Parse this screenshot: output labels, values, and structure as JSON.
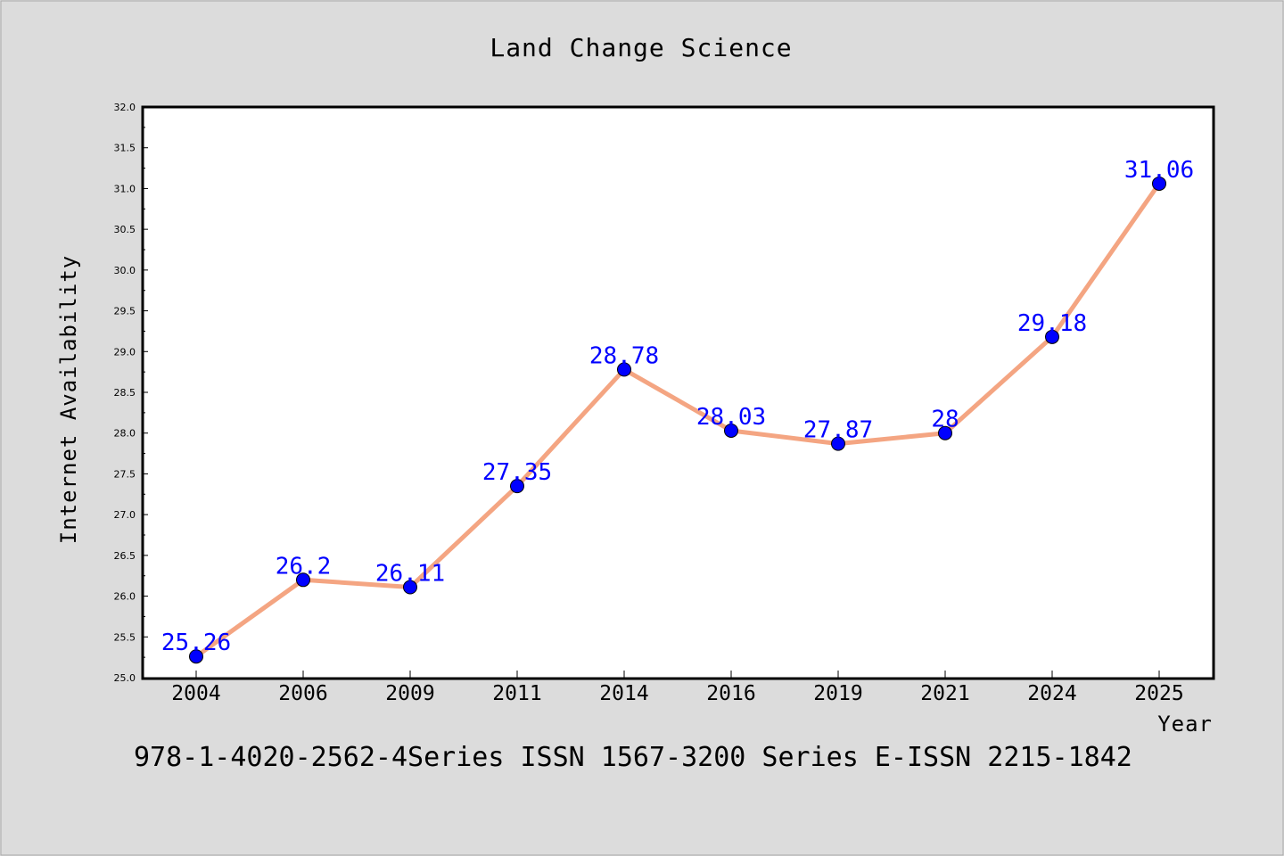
{
  "chart_data": {
    "type": "line",
    "title": "Land Change Science",
    "xlabel": "Year",
    "ylabel": "Internet Availability",
    "categories": [
      "2004",
      "2006",
      "2009",
      "2011",
      "2014",
      "2016",
      "2019",
      "2021",
      "2024",
      "2025"
    ],
    "series": [
      {
        "values": [
          25.26,
          26.2,
          26.11,
          27.35,
          28.78,
          28.03,
          27.87,
          28,
          29.18,
          31.06
        ],
        "labels": [
          "25.26",
          "26.2",
          "26.11",
          "27.35",
          "28.78",
          "28.03",
          "27.87",
          "28",
          "29.18",
          "31.06"
        ],
        "line_color": "#f4a582",
        "marker_color": "#0000ff"
      }
    ],
    "ylim": [
      25.0,
      32.0
    ],
    "yticks": [
      "25.0",
      "25.5",
      "26.0",
      "26.5",
      "27.0",
      "27.5",
      "28.0",
      "28.5",
      "29.0",
      "29.5",
      "30.0",
      "30.5",
      "31.0",
      "31.5",
      "32.0"
    ],
    "grid": false,
    "legend": "none"
  },
  "caption": "978-1-4020-2562-4Series ISSN 1567-3200 Series E-ISSN 2215-1842"
}
